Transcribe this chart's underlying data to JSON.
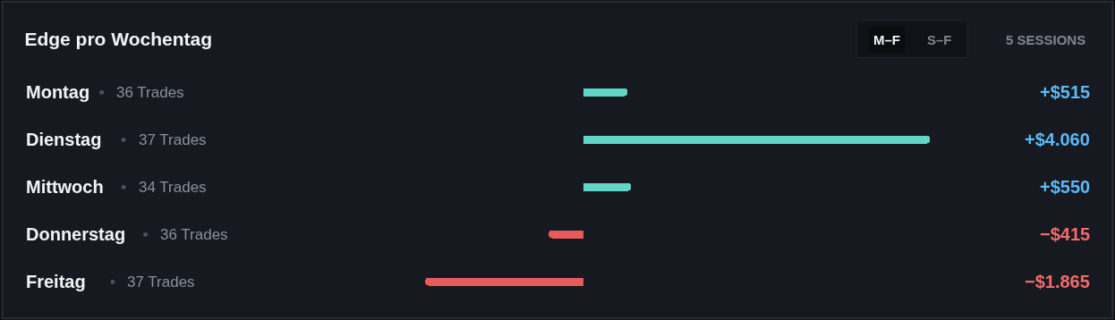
{
  "chart_data": {
    "type": "bar",
    "orientation": "horizontal",
    "title": "Edge pro Wochentag",
    "categories": [
      "Montag",
      "Dienstag",
      "Mittwoch",
      "Donnerstag",
      "Freitag"
    ],
    "values": [
      515,
      4060,
      550,
      -415,
      -1865
    ],
    "colors": [
      "#62d6c4",
      "#62d6c4",
      "#62d6c4",
      "#e85b5b",
      "#e85b5b"
    ],
    "value_labels": [
      "+$515",
      "+$4.060",
      "+$550",
      "−$415",
      "−$1.865"
    ],
    "annotations": [
      "36 Trades",
      "37 Trades",
      "34 Trades",
      "36 Trades",
      "37 Trades",
      "M–F",
      "S–F",
      "5 SESSIONS"
    ],
    "legend": false
  }
}
